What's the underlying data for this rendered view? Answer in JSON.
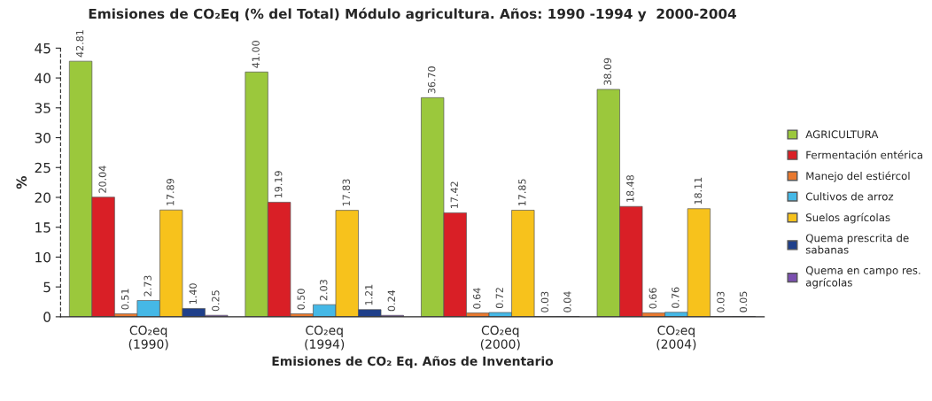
{
  "chart_data": {
    "type": "bar",
    "title": "Emisiones de CO₂Eq (% del Total) Módulo agricultura. Años: 1990 -1994 y  2000-2004",
    "xlabel": "Emisiones de CO₂ Eq. Años de Inventario",
    "ylabel": "%",
    "categories": [
      "CO₂eq\n(1990)",
      "CO₂eq\n(1994)",
      "CO₂eq\n(2000)",
      "CO₂eq\n(2004)"
    ],
    "ylim": [
      0,
      45
    ],
    "yticks": [
      0,
      5,
      10,
      15,
      20,
      25,
      30,
      35,
      40,
      45
    ],
    "grid": false,
    "legend": "right",
    "series": [
      {
        "name": "AGRICULTURA",
        "color": "#9bc83c",
        "values": [
          42.81,
          41.0,
          36.7,
          38.09
        ],
        "value_labels": [
          "42.81",
          "41.00",
          "36.70",
          "38.09"
        ]
      },
      {
        "name": "Fermentación entérica",
        "color": "#d91f26",
        "values": [
          20.04,
          19.19,
          17.42,
          18.48
        ],
        "value_labels": [
          "20.04",
          "19.19",
          "17.42",
          "18.48"
        ]
      },
      {
        "name": "Manejo del estiércol",
        "color": "#e8782e",
        "values": [
          0.51,
          0.5,
          0.64,
          0.66
        ],
        "value_labels": [
          "0.51",
          "0.50",
          "0.64",
          "0.66"
        ]
      },
      {
        "name": "Cultivos de arroz",
        "color": "#45b8e6",
        "values": [
          2.73,
          2.03,
          0.72,
          0.76
        ],
        "value_labels": [
          "2.73",
          "2.03",
          "0.72",
          "0.76"
        ]
      },
      {
        "name": "Suelos agrícolas",
        "color": "#f7c21c",
        "values": [
          17.89,
          17.83,
          17.85,
          18.11
        ],
        "value_labels": [
          "17.89",
          "17.83",
          "17.85",
          "18.11"
        ]
      },
      {
        "name": "Quema prescrita de\nsabanas",
        "color": "#1f3f8a",
        "values": [
          1.4,
          1.21,
          0.03,
          0.03
        ],
        "value_labels": [
          "1.40",
          "1.21",
          "0.03",
          "0.03"
        ]
      },
      {
        "name": "Quema en campo res.\nagrícolas",
        "color": "#7b4fb0",
        "values": [
          0.25,
          0.24,
          0.04,
          0.05
        ],
        "value_labels": [
          "0.25",
          "0.24",
          "0.04",
          "0.05"
        ]
      }
    ]
  }
}
